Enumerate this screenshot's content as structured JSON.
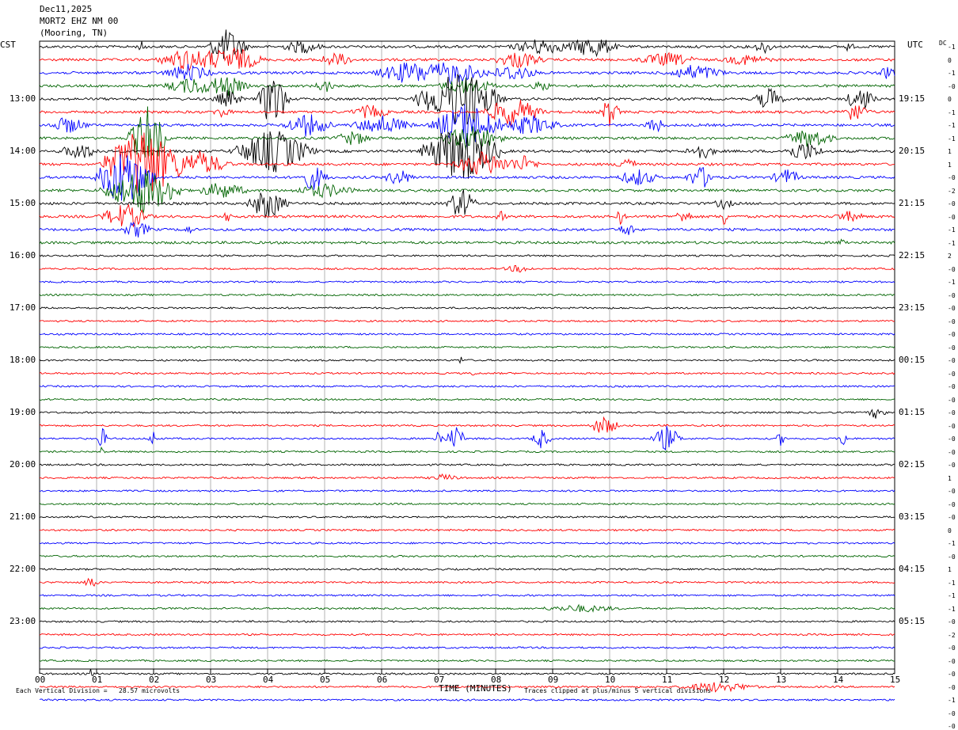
{
  "header": {
    "date": "Dec11,2025",
    "station": "MORT2 EHZ NM 00",
    "location": "(Mooring, TN)",
    "left_tz": "CST",
    "right_tz": "UTC",
    "dc_label": "DC"
  },
  "footer": {
    "scale_note": "Each Vertical Division =   28.57 microvolts",
    "clip_note": "Traces clipped at plus/minus 5 vertical divisions"
  },
  "colors": {
    "trace_cycle": [
      "#000000",
      "#ff0000",
      "#0000ff",
      "#006400"
    ],
    "grid": "#808080"
  },
  "chart_data": {
    "type": "line",
    "subtype": "helicorder",
    "xlabel": "TIME (MINUTES)",
    "x_ticks": [
      "00",
      "01",
      "02",
      "03",
      "04",
      "05",
      "06",
      "07",
      "08",
      "09",
      "10",
      "11",
      "12",
      "13",
      "14",
      "15"
    ],
    "xlim": [
      0,
      15
    ],
    "rows_per_hour": 4,
    "left_hour_labels": [
      "13:00",
      "14:00",
      "15:00",
      "16:00",
      "17:00",
      "18:00",
      "19:00",
      "20:00",
      "21:00",
      "22:00",
      "23:00"
    ],
    "right_hour_labels": [
      "19:15",
      "20:15",
      "21:15",
      "22:15",
      "23:15",
      "00:15",
      "01:15",
      "02:15",
      "03:15",
      "04:15",
      "05:15"
    ],
    "dc_offsets": [
      "-1",
      "0",
      "-1",
      "-0",
      "0",
      "-1",
      "-1",
      "-1",
      "1",
      "1",
      "-0",
      "-2",
      "-0",
      "-0",
      "-1",
      "-1",
      "2",
      "-0",
      "-1",
      "-0",
      "-0",
      "-0",
      "-0",
      "-0",
      "-0",
      "-0",
      "-0",
      "-0",
      "-0",
      "-0",
      "-0",
      "-0",
      "-0",
      "1",
      "-0",
      "-0",
      "-0",
      "0",
      "-1",
      "-0",
      "1",
      "-1",
      "-1",
      "-1",
      "-0",
      "-2",
      "-0",
      "-0",
      "-0",
      "-0",
      "-1",
      "-0",
      "-0"
    ],
    "series": [
      {
        "name": "trace color cycle: black (row 1 of hour)"
      },
      {
        "name": "trace color cycle: red (row 2 of hour)"
      },
      {
        "name": "trace color cycle: blue (row 3 of hour)"
      },
      {
        "name": "trace color cycle: green (row 4 of hour)"
      }
    ]
  }
}
